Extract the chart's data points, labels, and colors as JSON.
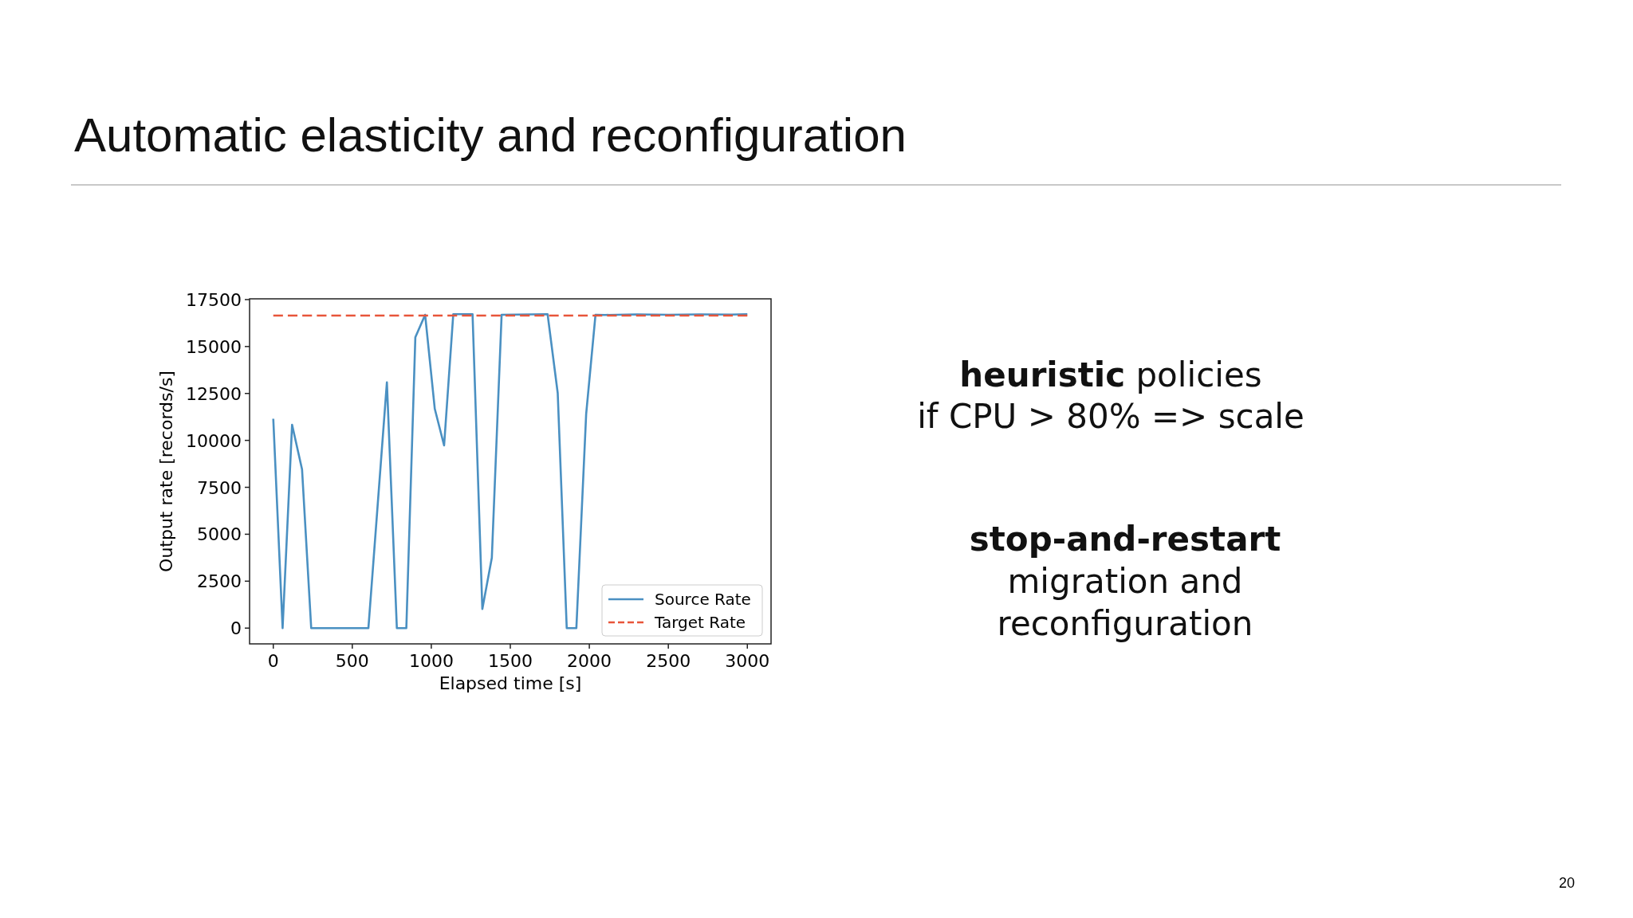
{
  "chart_data": {
    "type": "line",
    "title": "Automatic elasticity and reconfiguration",
    "xlabel": "Elapsed time [s]",
    "ylabel": "Output rate [records/s]",
    "series": [
      {
        "name": "Source Rate",
        "color": "#4a90c2",
        "line_style": "solid",
        "x": [
          0,
          59,
          119,
          182,
          240,
          602,
          719,
          782,
          842,
          899,
          961,
          1022,
          1081,
          1139,
          1261,
          1323,
          1383,
          1445,
          1736,
          1800,
          1857,
          1918,
          1980,
          2039,
          2100,
          2300,
          2500,
          2700,
          2900,
          3000
        ],
        "values": [
          11150,
          0,
          10830,
          8460,
          0,
          0,
          13090,
          0,
          0,
          15490,
          16690,
          11680,
          9730,
          16720,
          16720,
          1020,
          3740,
          16690,
          16720,
          12520,
          0,
          0,
          11400,
          16690,
          16680,
          16710,
          16690,
          16710,
          16700,
          16720
        ]
      },
      {
        "name": "Target Rate",
        "color": "#e8553a",
        "line_style": "dashed",
        "x": [
          0,
          3000
        ],
        "values": [
          16650,
          16650
        ]
      }
    ],
    "xlim": [
      -150,
      3150
    ],
    "ylim": [
      -840,
      17540
    ],
    "xticks": [
      0,
      500,
      1000,
      1500,
      2000,
      2500,
      3000
    ],
    "yticks": [
      0,
      2500,
      5000,
      7500,
      10000,
      12500,
      15000,
      17500
    ],
    "grid": false,
    "legend": "bottom right",
    "annotations": [
      "heuristic policies",
      "if CPU > 80% => scale",
      "stop-and-restart",
      "migration and",
      "reconfiguration",
      "20"
    ]
  }
}
